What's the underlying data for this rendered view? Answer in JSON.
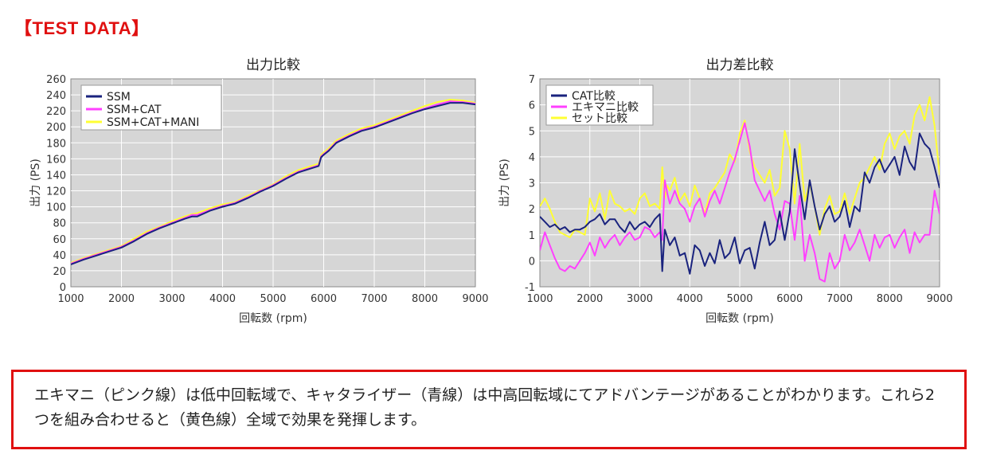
{
  "heading": "【TEST DATA】",
  "note": "エキマニ（ピンク線）は低中回転域で、キャタライザー（青線）は中高回転域にてアドバンテージがあることがわかります。これら2つを組み合わせると（黄色線）全域で効果を発揮します。",
  "chart_data": [
    {
      "type": "line",
      "title": "出力比較",
      "xlabel": "回転数 (rpm)",
      "ylabel": "出力 (PS)",
      "xlim": [
        1000,
        9000
      ],
      "ylim": [
        0,
        260
      ],
      "xticks": [
        1000,
        2000,
        3000,
        4000,
        5000,
        6000,
        7000,
        8000,
        9000
      ],
      "yticks": [
        0,
        20,
        40,
        60,
        80,
        100,
        120,
        140,
        160,
        180,
        200,
        220,
        240,
        260
      ],
      "grid": true,
      "legend_position": "top-left",
      "series": [
        {
          "name": "SSM",
          "color": "#1a237e",
          "x": [
            1000,
            1250,
            1500,
            1750,
            2000,
            2250,
            2500,
            2750,
            3000,
            3250,
            3400,
            3500,
            3750,
            4000,
            4250,
            4500,
            4750,
            5000,
            5250,
            5500,
            5750,
            5900,
            5950,
            6000,
            6100,
            6250,
            6500,
            6750,
            7000,
            7250,
            7500,
            7750,
            8000,
            8250,
            8500,
            8750,
            9000
          ],
          "values": [
            28,
            34,
            39,
            44,
            49,
            57,
            66,
            73,
            79,
            85,
            88,
            88,
            95,
            100,
            104,
            111,
            119,
            126,
            135,
            143,
            148,
            151,
            162,
            165,
            170,
            180,
            188,
            195,
            199,
            205,
            211,
            217,
            222,
            226,
            230,
            230,
            228
          ]
        },
        {
          "name": "SSM+CAT",
          "color": "#ff40ff",
          "x": [
            1000,
            1250,
            1500,
            1750,
            2000,
            2250,
            2500,
            2750,
            3000,
            3250,
            3400,
            3500,
            3750,
            4000,
            4250,
            4500,
            4750,
            5000,
            5250,
            5500,
            5750,
            5900,
            5950,
            6000,
            6100,
            6250,
            6500,
            6750,
            7000,
            7250,
            7500,
            7750,
            8000,
            8250,
            8500,
            8750,
            9000
          ],
          "values": [
            29,
            35,
            40,
            45,
            50,
            58,
            67,
            74,
            80,
            86,
            90,
            90,
            96,
            101,
            105,
            112,
            120,
            127,
            136,
            144,
            149,
            152,
            163,
            166,
            171,
            181,
            189,
            196,
            200,
            206,
            212,
            218,
            223,
            228,
            232,
            231,
            229
          ]
        },
        {
          "name": "SSM+CAT+MANI",
          "color": "#ffff33",
          "x": [
            1000,
            1250,
            1500,
            1750,
            2000,
            2250,
            2500,
            2750,
            3000,
            3250,
            3400,
            3500,
            3750,
            4000,
            4250,
            4500,
            4750,
            5000,
            5250,
            5500,
            5750,
            5900,
            5950,
            6000,
            6100,
            6250,
            6500,
            6750,
            7000,
            7250,
            7500,
            7750,
            8000,
            8250,
            8500,
            8750,
            9000
          ],
          "values": [
            30,
            36,
            41,
            46,
            51,
            60,
            69,
            75,
            82,
            88,
            91,
            92,
            98,
            103,
            106,
            114,
            121,
            128,
            138,
            146,
            151,
            154,
            165,
            168,
            173,
            183,
            191,
            198,
            202,
            208,
            214,
            220,
            226,
            231,
            234,
            233,
            230
          ]
        }
      ]
    },
    {
      "type": "line",
      "title": "出力差比較",
      "xlabel": "回転数 (rpm)",
      "ylabel": "出力 (PS)",
      "xlim": [
        1000,
        9000
      ],
      "ylim": [
        -1,
        7
      ],
      "xticks": [
        1000,
        2000,
        3000,
        4000,
        5000,
        6000,
        7000,
        8000,
        9000
      ],
      "yticks": [
        -1,
        0,
        1,
        2,
        3,
        4,
        5,
        6,
        7
      ],
      "grid": true,
      "legend_position": "top-left",
      "series": [
        {
          "name": "CAT比較",
          "color": "#1a237e",
          "x": [
            1000,
            1100,
            1200,
            1300,
            1400,
            1500,
            1600,
            1700,
            1800,
            1900,
            2000,
            2100,
            2200,
            2300,
            2400,
            2500,
            2600,
            2700,
            2800,
            2900,
            3000,
            3100,
            3200,
            3300,
            3400,
            3450,
            3500,
            3550,
            3600,
            3700,
            3800,
            3900,
            4000,
            4100,
            4200,
            4300,
            4400,
            4500,
            4600,
            4700,
            4800,
            4900,
            5000,
            5100,
            5200,
            5300,
            5400,
            5500,
            5600,
            5700,
            5800,
            5900,
            6000,
            6100,
            6200,
            6300,
            6400,
            6500,
            6600,
            6700,
            6800,
            6900,
            7000,
            7100,
            7200,
            7300,
            7400,
            7500,
            7600,
            7700,
            7800,
            7900,
            8000,
            8100,
            8200,
            8300,
            8400,
            8500,
            8600,
            8700,
            8800,
            8900,
            9000
          ],
          "values": [
            1.7,
            1.5,
            1.3,
            1.4,
            1.2,
            1.3,
            1.1,
            1.2,
            1.2,
            1.3,
            1.5,
            1.6,
            1.8,
            1.4,
            1.6,
            1.6,
            1.3,
            1.1,
            1.5,
            1.2,
            1.4,
            1.5,
            1.3,
            1.6,
            1.8,
            -0.4,
            1.2,
            0.9,
            0.6,
            0.9,
            0.2,
            0.3,
            -0.5,
            0.6,
            0.4,
            -0.2,
            0.3,
            -0.1,
            0.8,
            0.1,
            0.3,
            0.9,
            -0.1,
            0.4,
            0.5,
            -0.3,
            0.7,
            1.5,
            0.6,
            0.8,
            1.9,
            0.8,
            1.9,
            4.3,
            2.9,
            1.6,
            3.1,
            2.1,
            1.2,
            1.8,
            2.1,
            1.5,
            1.7,
            2.3,
            1.3,
            2.1,
            1.9,
            3.4,
            3.0,
            3.6,
            3.9,
            3.4,
            3.7,
            4.0,
            3.3,
            4.4,
            3.8,
            3.5,
            4.9,
            4.5,
            4.3,
            3.6,
            2.8
          ]
        },
        {
          "name": "エキマニ比較",
          "color": "#ff40ff",
          "x": [
            1000,
            1100,
            1200,
            1300,
            1400,
            1500,
            1600,
            1700,
            1800,
            1900,
            2000,
            2100,
            2200,
            2300,
            2400,
            2500,
            2600,
            2700,
            2800,
            2900,
            3000,
            3100,
            3200,
            3300,
            3400,
            3450,
            3500,
            3550,
            3600,
            3700,
            3800,
            3900,
            4000,
            4100,
            4200,
            4300,
            4400,
            4500,
            4600,
            4700,
            4800,
            4900,
            5000,
            5100,
            5200,
            5300,
            5400,
            5500,
            5600,
            5700,
            5800,
            5900,
            6000,
            6100,
            6200,
            6300,
            6400,
            6500,
            6600,
            6700,
            6800,
            6900,
            7000,
            7100,
            7200,
            7300,
            7400,
            7500,
            7600,
            7700,
            7800,
            7900,
            8000,
            8100,
            8200,
            8300,
            8400,
            8500,
            8600,
            8700,
            8800,
            8900,
            9000
          ],
          "values": [
            0.4,
            1.1,
            0.6,
            0.1,
            -0.3,
            -0.4,
            -0.2,
            -0.3,
            0.0,
            0.3,
            0.7,
            0.2,
            0.9,
            0.5,
            0.8,
            1.0,
            0.6,
            0.9,
            1.1,
            0.8,
            0.9,
            1.3,
            1.2,
            0.9,
            1.1,
            0.8,
            3.1,
            2.6,
            2.2,
            2.7,
            2.2,
            2.0,
            1.5,
            2.1,
            2.4,
            1.7,
            2.3,
            2.7,
            2.2,
            2.8,
            3.4,
            3.9,
            4.6,
            5.3,
            4.4,
            3.1,
            2.7,
            2.3,
            2.7,
            1.8,
            1.2,
            2.3,
            2.2,
            0.8,
            2.5,
            0.0,
            1.0,
            0.3,
            -0.7,
            -0.8,
            0.3,
            -0.3,
            0.0,
            1.0,
            0.4,
            0.7,
            1.2,
            0.6,
            0.0,
            1.0,
            0.5,
            0.9,
            1.0,
            0.5,
            0.9,
            1.2,
            0.3,
            1.1,
            0.7,
            1.0,
            1.0,
            2.7,
            1.8
          ]
        },
        {
          "name": "セット比較",
          "color": "#ffff33",
          "x": [
            1000,
            1100,
            1200,
            1300,
            1400,
            1500,
            1600,
            1700,
            1800,
            1900,
            2000,
            2100,
            2200,
            2300,
            2400,
            2500,
            2600,
            2700,
            2800,
            2900,
            3000,
            3100,
            3200,
            3300,
            3400,
            3450,
            3500,
            3550,
            3600,
            3700,
            3800,
            3900,
            4000,
            4100,
            4200,
            4300,
            4400,
            4500,
            4600,
            4700,
            4800,
            4900,
            5000,
            5100,
            5200,
            5300,
            5400,
            5500,
            5600,
            5700,
            5800,
            5900,
            6000,
            6100,
            6200,
            6300,
            6400,
            6500,
            6600,
            6700,
            6800,
            6900,
            7000,
            7100,
            7200,
            7300,
            7400,
            7500,
            7600,
            7700,
            7800,
            7900,
            8000,
            8100,
            8200,
            8300,
            8400,
            8500,
            8600,
            8700,
            8800,
            8900,
            9000
          ],
          "values": [
            2.1,
            2.4,
            2.0,
            1.5,
            1.1,
            1.0,
            0.9,
            1.2,
            1.1,
            1.0,
            2.4,
            1.9,
            2.6,
            1.6,
            2.7,
            2.2,
            2.1,
            1.9,
            2.0,
            1.8,
            2.4,
            2.6,
            2.1,
            2.2,
            2.0,
            3.6,
            2.4,
            2.9,
            2.7,
            3.2,
            2.3,
            2.6,
            2.1,
            2.9,
            2.4,
            1.8,
            2.6,
            2.8,
            3.1,
            3.4,
            4.1,
            3.8,
            4.9,
            5.4,
            4.2,
            3.6,
            3.3,
            3.0,
            3.5,
            2.5,
            2.8,
            5.0,
            4.3,
            2.2,
            4.5,
            2.3,
            3.0,
            2.1,
            1.0,
            2.0,
            2.5,
            1.8,
            1.9,
            2.6,
            1.8,
            2.4,
            3.0,
            3.2,
            3.6,
            4.0,
            3.5,
            4.5,
            4.9,
            4.3,
            4.8,
            5.0,
            4.5,
            5.6,
            6.0,
            5.4,
            6.3,
            5.2,
            3.3
          ]
        }
      ]
    }
  ]
}
